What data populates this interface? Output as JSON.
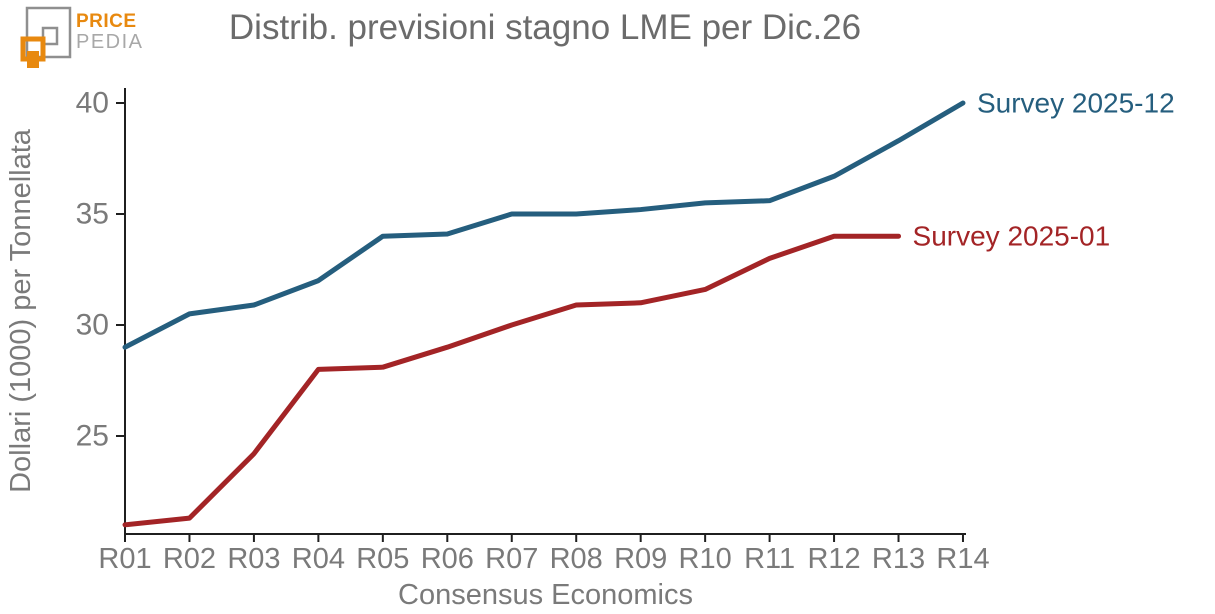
{
  "logo": {
    "top": "PRICE",
    "bottom": "PEDIA",
    "orange": "#e8890f",
    "gray": "#8f8f8f"
  },
  "chart_data": {
    "type": "line",
    "title": "Distrib. previsioni stagno LME per Dic.26",
    "xlabel": "Consensus Economics",
    "ylabel": "Dollari (1000) per Tonnellata",
    "categories": [
      "R01",
      "R02",
      "R03",
      "R04",
      "R05",
      "R06",
      "R07",
      "R08",
      "R09",
      "R10",
      "R11",
      "R12",
      "R13",
      "R14"
    ],
    "yticks": [
      40,
      35,
      30,
      25
    ],
    "ylim": [
      20.6,
      40.7
    ],
    "grid": false,
    "legend_position": "line-end-labels",
    "series": [
      {
        "name": "Survey 2025-12",
        "color": "#255e7e",
        "values": [
          29.0,
          30.5,
          30.9,
          32.0,
          34.0,
          34.1,
          35.0,
          35.0,
          35.2,
          35.5,
          35.6,
          36.7,
          38.3,
          40.0
        ]
      },
      {
        "name": "Survey 2025-01",
        "color": "#a32426",
        "values": [
          21.0,
          21.3,
          24.2,
          28.0,
          28.1,
          29.0,
          30.0,
          30.9,
          31.0,
          31.6,
          33.0,
          34.0,
          34.0
        ]
      }
    ]
  },
  "colors": {
    "title": "#6b6b6b",
    "axis": "#1f1f1f",
    "tick_label": "#7a7a7a",
    "background": "#ffffff"
  }
}
